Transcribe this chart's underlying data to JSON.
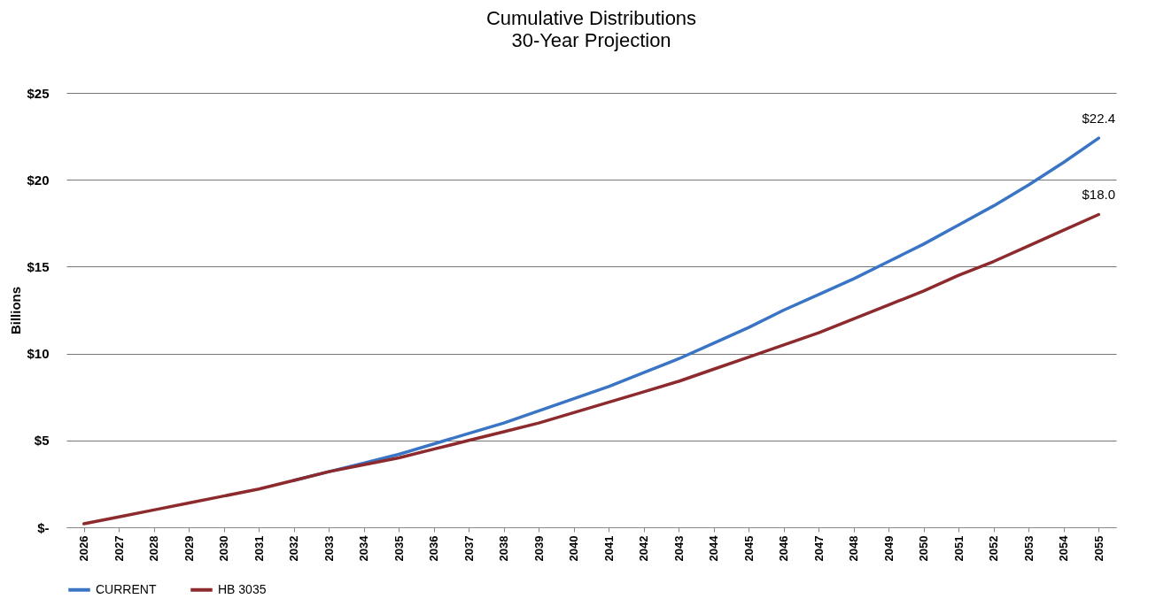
{
  "chart_data": {
    "type": "line",
    "title": "Cumulative Distributions",
    "subtitle": "30-Year Projection",
    "ylabel": "Billions",
    "categories": [
      "2026",
      "2027",
      "2028",
      "2029",
      "2030",
      "2031",
      "2032",
      "2033",
      "2034",
      "2035",
      "2036",
      "2037",
      "2038",
      "2039",
      "2040",
      "2041",
      "2042",
      "2043",
      "2044",
      "2045",
      "2046",
      "2047",
      "2048",
      "2049",
      "2050",
      "2051",
      "2052",
      "2053",
      "2054",
      "2055"
    ],
    "series": [
      {
        "name": "CURRENT",
        "color": "#3a74c4",
        "values": [
          null,
          null,
          null,
          null,
          null,
          null,
          2.7,
          3.2,
          3.7,
          4.2,
          4.8,
          5.4,
          6.0,
          6.7,
          7.4,
          8.1,
          8.9,
          9.7,
          10.6,
          11.5,
          12.5,
          13.4,
          14.3,
          15.3,
          16.3,
          17.4,
          18.5,
          19.7,
          21.0,
          22.4
        ]
      },
      {
        "name": "HB 3035",
        "color": "#8c2a2e",
        "values": [
          0.2,
          0.6,
          1.0,
          1.4,
          1.8,
          2.2,
          2.7,
          3.2,
          3.6,
          4.0,
          4.5,
          5.0,
          5.5,
          6.0,
          6.6,
          7.2,
          7.8,
          8.4,
          9.1,
          9.8,
          10.5,
          11.2,
          12.0,
          12.8,
          13.6,
          14.5,
          15.3,
          16.2,
          17.1,
          18.0
        ]
      }
    ],
    "ylim": [
      0,
      25
    ],
    "yticks": [
      {
        "value": 0,
        "label": "$-"
      },
      {
        "value": 5,
        "label": "$5"
      },
      {
        "value": 10,
        "label": "$10"
      },
      {
        "value": 15,
        "label": "$15"
      },
      {
        "value": 20,
        "label": "$20"
      },
      {
        "value": 25,
        "label": "$25"
      }
    ],
    "annotations": [
      {
        "text": "$22.4",
        "x": "2055",
        "y": 22.4
      },
      {
        "text": "$18.0",
        "x": "2055",
        "y": 18.0
      }
    ],
    "grid": "y",
    "legend": "bottom",
    "marker": "none",
    "line_style": "solid"
  }
}
